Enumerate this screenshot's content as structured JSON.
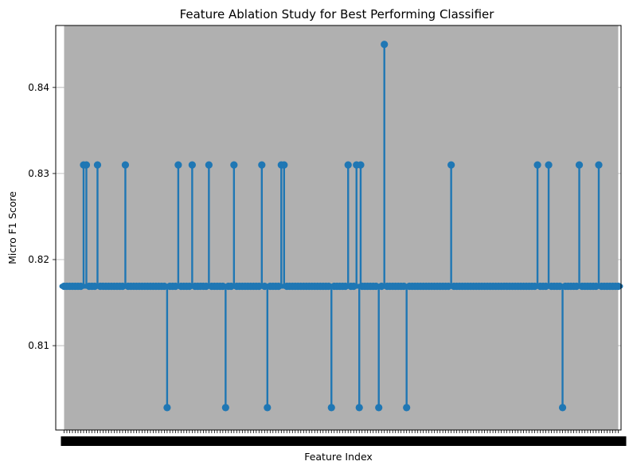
{
  "chart_data": {
    "type": "stem",
    "title": "Feature Ablation Study for Best Performing Classifier",
    "xlabel": "Feature Index",
    "ylabel": "Micro F1 Score",
    "baseline": 0.8169,
    "ylim": [
      0.8002,
      0.8472
    ],
    "yticks": [
      0.81,
      0.82,
      0.83,
      0.84
    ],
    "ytick_labels": [
      "0.81",
      "0.82",
      "0.83",
      "0.84"
    ],
    "xlim": [
      -3,
      200
    ],
    "x_count": 200,
    "x_ticks_unreadable": true,
    "grid": {
      "y": true,
      "x": false
    },
    "colors": {
      "series": "#1f77b4",
      "background_band": "#b0b0b0",
      "grid": "#b0b0b0"
    },
    "deviations": [
      {
        "x": 7,
        "y": 0.831
      },
      {
        "x": 8,
        "y": 0.831
      },
      {
        "x": 12,
        "y": 0.831
      },
      {
        "x": 22,
        "y": 0.831
      },
      {
        "x": 37,
        "y": 0.8028
      },
      {
        "x": 41,
        "y": 0.831
      },
      {
        "x": 46,
        "y": 0.831
      },
      {
        "x": 52,
        "y": 0.831
      },
      {
        "x": 58,
        "y": 0.8028
      },
      {
        "x": 61,
        "y": 0.831
      },
      {
        "x": 71,
        "y": 0.831
      },
      {
        "x": 73,
        "y": 0.8028
      },
      {
        "x": 78,
        "y": 0.831
      },
      {
        "x": 79,
        "y": 0.831
      },
      {
        "x": 96,
        "y": 0.8028
      },
      {
        "x": 102,
        "y": 0.831
      },
      {
        "x": 105,
        "y": 0.831
      },
      {
        "x": 106,
        "y": 0.8028
      },
      {
        "x": 106.5,
        "y": 0.831
      },
      {
        "x": 113,
        "y": 0.8028
      },
      {
        "x": 115,
        "y": 0.845
      },
      {
        "x": 123,
        "y": 0.8028
      },
      {
        "x": 139,
        "y": 0.831
      },
      {
        "x": 170,
        "y": 0.831
      },
      {
        "x": 174,
        "y": 0.831
      },
      {
        "x": 179,
        "y": 0.8028
      },
      {
        "x": 185,
        "y": 0.831
      },
      {
        "x": 192,
        "y": 0.831
      }
    ]
  }
}
